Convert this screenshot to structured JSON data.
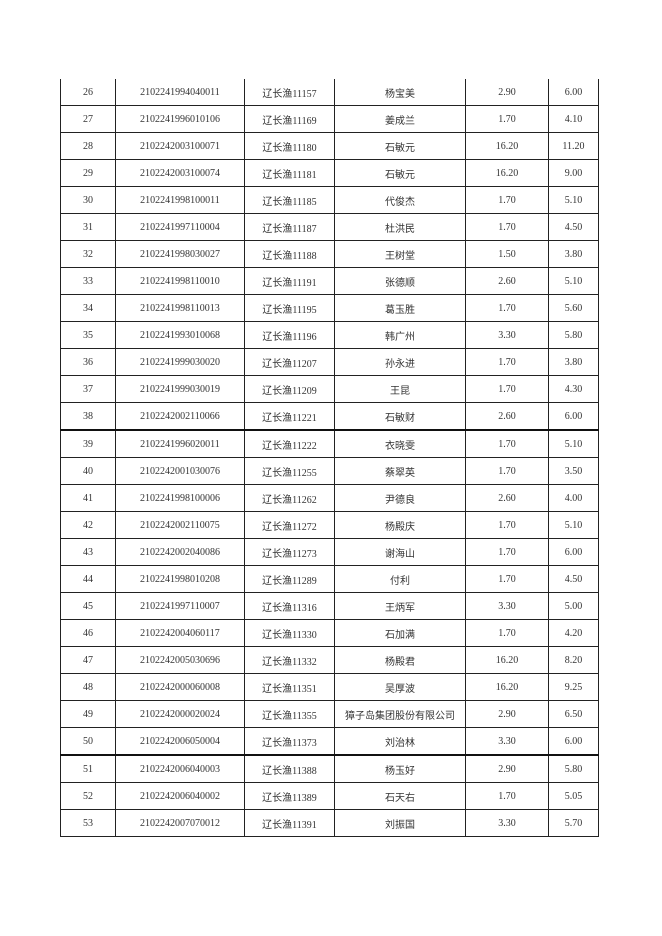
{
  "rows": [
    [
      "26",
      "2102241994040011",
      "辽长渔11157",
      "杨宝美",
      "2.90",
      "6.00"
    ],
    [
      "27",
      "2102241996010106",
      "辽长渔11169",
      "姜成兰",
      "1.70",
      "4.10"
    ],
    [
      "28",
      "2102242003100071",
      "辽长渔11180",
      "石敏元",
      "16.20",
      "11.20"
    ],
    [
      "29",
      "2102242003100074",
      "辽长渔11181",
      "石敏元",
      "16.20",
      "9.00"
    ],
    [
      "30",
      "2102241998100011",
      "辽长渔11185",
      "代俊杰",
      "1.70",
      "5.10"
    ],
    [
      "31",
      "2102241997110004",
      "辽长渔11187",
      "杜洪民",
      "1.70",
      "4.50"
    ],
    [
      "32",
      "2102241998030027",
      "辽长渔11188",
      "王树堂",
      "1.50",
      "3.80"
    ],
    [
      "33",
      "2102241998110010",
      "辽长渔11191",
      "张德顺",
      "2.60",
      "5.10"
    ],
    [
      "34",
      "2102241998110013",
      "辽长渔11195",
      "葛玉胜",
      "1.70",
      "5.60"
    ],
    [
      "35",
      "2102241993010068",
      "辽长渔11196",
      "韩广州",
      "3.30",
      "5.80"
    ],
    [
      "36",
      "2102241999030020",
      "辽长渔11207",
      "孙永进",
      "1.70",
      "3.80"
    ],
    [
      "37",
      "2102241999030019",
      "辽长渔11209",
      "王昆",
      "1.70",
      "4.30"
    ],
    [
      "38",
      "2102242002110066",
      "辽长渔11221",
      "石敏财",
      "2.60",
      "6.00"
    ],
    [
      "39",
      "2102241996020011",
      "辽长渔11222",
      "衣晓雯",
      "1.70",
      "5.10"
    ],
    [
      "40",
      "2102242001030076",
      "辽长渔11255",
      "蔡翠英",
      "1.70",
      "3.50"
    ],
    [
      "41",
      "2102241998100006",
      "辽长渔11262",
      "尹德良",
      "2.60",
      "4.00"
    ],
    [
      "42",
      "2102242002110075",
      "辽长渔11272",
      "杨殿庆",
      "1.70",
      "5.10"
    ],
    [
      "43",
      "2102242002040086",
      "辽长渔11273",
      "谢海山",
      "1.70",
      "6.00"
    ],
    [
      "44",
      "2102241998010208",
      "辽长渔11289",
      "付利",
      "1.70",
      "4.50"
    ],
    [
      "45",
      "2102241997110007",
      "辽长渔11316",
      "王炳军",
      "3.30",
      "5.00"
    ],
    [
      "46",
      "2102242004060117",
      "辽长渔11330",
      "石加满",
      "1.70",
      "4.20"
    ],
    [
      "47",
      "2102242005030696",
      "辽长渔11332",
      "杨殿君",
      "16.20",
      "8.20"
    ],
    [
      "48",
      "2102242000060008",
      "辽长渔11351",
      "吴厚波",
      "16.20",
      "9.25"
    ],
    [
      "49",
      "2102242000020024",
      "辽长渔11355",
      "獐子岛集团股份有限公司",
      "2.90",
      "6.50"
    ],
    [
      "50",
      "2102242006050004",
      "辽长渔11373",
      "刘治林",
      "3.30",
      "6.00"
    ],
    [
      "51",
      "2102242006040003",
      "辽长渔11388",
      "杨玉好",
      "2.90",
      "5.80"
    ],
    [
      "52",
      "2102242006040002",
      "辽长渔11389",
      "石天右",
      "1.70",
      "5.05"
    ],
    [
      "53",
      "2102242007070012",
      "辽长渔11391",
      "刘振国",
      "3.30",
      "5.70"
    ]
  ]
}
